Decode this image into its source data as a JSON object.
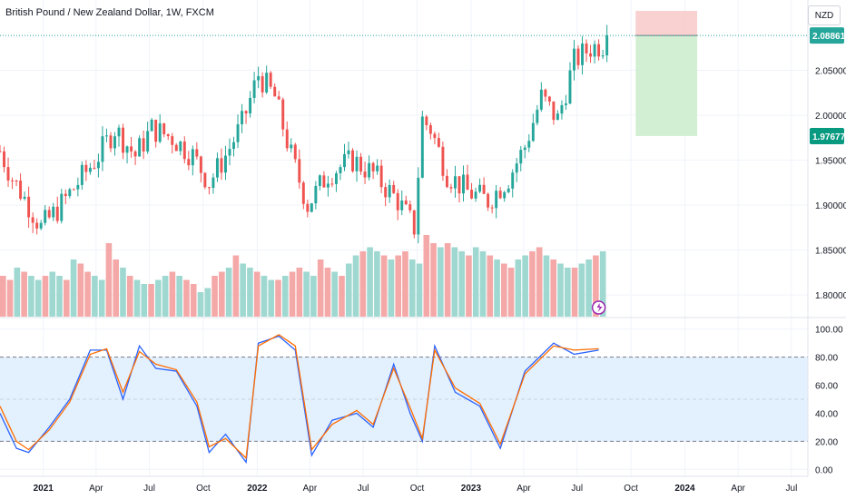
{
  "header": {
    "title": "British Pound / New Zealand Dollar, 1W, FXCM",
    "currency": "NZD"
  },
  "price_axis": {
    "ticks": [
      "2.05000",
      "2.00000",
      "1.95000",
      "1.90000",
      "1.85000",
      "1.80000"
    ],
    "last_price_label": "2.08861",
    "target_label": "1.97677"
  },
  "oscillator_axis": {
    "ticks": [
      "100.00",
      "80.00",
      "60.00",
      "40.00",
      "20.00",
      "0.00"
    ]
  },
  "time_axis": {
    "ticks": [
      "2021",
      "Apr",
      "Jul",
      "Oct",
      "2022",
      "Apr",
      "Jul",
      "Oct",
      "2023",
      "Apr",
      "Jul",
      "Oct",
      "2024",
      "Apr",
      "Jul"
    ]
  },
  "colors": {
    "up": "#26a69a",
    "down": "#ef5350",
    "volume_up": "#9fd8d0",
    "volume_down": "#f4a9a8",
    "stoch_k": "#2962ff",
    "stoch_d": "#ff6d00",
    "stoch_band": "#e3f0fd",
    "last_price_bg": "#26a69a",
    "target_bg": "#089981",
    "loss_zone": "#f7c6c6",
    "profit_zone": "#cdedcf"
  },
  "chart_data": [
    {
      "type": "candlestick",
      "symbol": "GBPNZD",
      "timeframe": "1W",
      "ylim": [
        1.78,
        2.12
      ],
      "x_range": [
        "2020-10-19",
        "2024-07-29"
      ],
      "close_path": [
        [
          "2020-10-19",
          1.96
        ],
        [
          "2020-11-09",
          1.93
        ],
        [
          "2020-12-07",
          1.9
        ],
        [
          "2020-12-28",
          1.875
        ],
        [
          "2021-01-25",
          1.895
        ],
        [
          "2021-03-01",
          1.925
        ],
        [
          "2021-04-05",
          1.955
        ],
        [
          "2021-05-03",
          1.985
        ],
        [
          "2021-06-07",
          1.955
        ],
        [
          "2021-07-05",
          1.985
        ],
        [
          "2021-08-09",
          1.975
        ],
        [
          "2021-09-13",
          1.955
        ],
        [
          "2021-10-11",
          1.925
        ],
        [
          "2021-11-08",
          1.955
        ],
        [
          "2021-12-06",
          1.99
        ],
        [
          "2022-01-03",
          2.045
        ],
        [
          "2022-01-31",
          2.02
        ],
        [
          "2022-02-28",
          1.955
        ],
        [
          "2022-03-28",
          1.9
        ],
        [
          "2022-05-02",
          1.935
        ],
        [
          "2022-06-13",
          1.95
        ],
        [
          "2022-07-18",
          1.935
        ],
        [
          "2022-08-29",
          1.905
        ],
        [
          "2022-09-26",
          1.875
        ],
        [
          "2022-10-10",
          1.995
        ],
        [
          "2022-10-24",
          1.985
        ],
        [
          "2022-11-21",
          1.935
        ],
        [
          "2022-12-26",
          1.915
        ],
        [
          "2023-01-30",
          1.905
        ],
        [
          "2023-03-06",
          1.93
        ],
        [
          "2023-04-03",
          1.965
        ],
        [
          "2023-05-01",
          2.02
        ],
        [
          "2023-05-29",
          1.995
        ],
        [
          "2023-06-26",
          2.06
        ],
        [
          "2023-07-24",
          2.075
        ],
        [
          "2023-08-21",
          2.08
        ]
      ],
      "last_price": 2.08861
    },
    {
      "type": "bar",
      "name": "volume",
      "x_range": [
        "2020-10-19",
        "2023-08-21"
      ],
      "relative_values": [
        0.5,
        0.45,
        0.6,
        0.55,
        0.5,
        0.45,
        0.5,
        0.55,
        0.5,
        0.45,
        0.7,
        0.65,
        0.55,
        0.5,
        0.45,
        0.9,
        0.7,
        0.6,
        0.5,
        0.45,
        0.4,
        0.4,
        0.45,
        0.5,
        0.55,
        0.5,
        0.45,
        0.4,
        0.3,
        0.35,
        0.5,
        0.55,
        0.6,
        0.75,
        0.65,
        0.6,
        0.55,
        0.5,
        0.45,
        0.45,
        0.5,
        0.55,
        0.6,
        0.55,
        0.5,
        0.7,
        0.6,
        0.55,
        0.5,
        0.65,
        0.75,
        0.8,
        0.85,
        0.8,
        0.75,
        0.7,
        0.75,
        0.8,
        0.7,
        0.65,
        1.0,
        0.9,
        0.85,
        0.9,
        0.85,
        0.8,
        0.75,
        0.85,
        0.8,
        0.75,
        0.7,
        0.65,
        0.6,
        0.7,
        0.75,
        0.8,
        0.85,
        0.75,
        0.7,
        0.65,
        0.6,
        0.6,
        0.65,
        0.7,
        0.75,
        0.8
      ]
    },
    {
      "type": "line",
      "name": "stochastic",
      "ylim": [
        -5,
        105
      ],
      "bands": [
        20,
        50,
        80
      ],
      "series": [
        {
          "key": "k",
          "values": [
            [
              "2020-10-19",
              40
            ],
            [
              "2020-11-16",
              15
            ],
            [
              "2020-12-07",
              12
            ],
            [
              "2021-01-11",
              30
            ],
            [
              "2021-02-15",
              50
            ],
            [
              "2021-03-22",
              85
            ],
            [
              "2021-04-19",
              85
            ],
            [
              "2021-05-17",
              50
            ],
            [
              "2021-06-14",
              88
            ],
            [
              "2021-07-12",
              72
            ],
            [
              "2021-08-16",
              70
            ],
            [
              "2021-09-20",
              45
            ],
            [
              "2021-10-11",
              12
            ],
            [
              "2021-11-08",
              25
            ],
            [
              "2021-12-13",
              5
            ],
            [
              "2022-01-03",
              90
            ],
            [
              "2022-02-07",
              95
            ],
            [
              "2022-03-07",
              85
            ],
            [
              "2022-04-04",
              10
            ],
            [
              "2022-05-09",
              35
            ],
            [
              "2022-06-20",
              40
            ],
            [
              "2022-07-18",
              30
            ],
            [
              "2022-08-22",
              75
            ],
            [
              "2022-09-19",
              40
            ],
            [
              "2022-10-10",
              20
            ],
            [
              "2022-10-31",
              88
            ],
            [
              "2022-12-05",
              55
            ],
            [
              "2023-01-16",
              45
            ],
            [
              "2023-02-20",
              15
            ],
            [
              "2023-04-03",
              70
            ],
            [
              "2023-05-22",
              90
            ],
            [
              "2023-06-26",
              82
            ],
            [
              "2023-08-07",
              85
            ]
          ]
        },
        {
          "key": "d",
          "values": [
            [
              "2020-10-19",
              45
            ],
            [
              "2020-11-16",
              20
            ],
            [
              "2020-12-07",
              14
            ],
            [
              "2021-01-11",
              28
            ],
            [
              "2021-02-15",
              48
            ],
            [
              "2021-03-22",
              82
            ],
            [
              "2021-04-19",
              86
            ],
            [
              "2021-05-17",
              55
            ],
            [
              "2021-06-14",
              84
            ],
            [
              "2021-07-12",
              75
            ],
            [
              "2021-08-16",
              71
            ],
            [
              "2021-09-20",
              48
            ],
            [
              "2021-10-11",
              16
            ],
            [
              "2021-11-08",
              22
            ],
            [
              "2021-12-13",
              8
            ],
            [
              "2022-01-03",
              88
            ],
            [
              "2022-02-07",
              96
            ],
            [
              "2022-03-07",
              88
            ],
            [
              "2022-04-04",
              14
            ],
            [
              "2022-05-09",
              32
            ],
            [
              "2022-06-20",
              42
            ],
            [
              "2022-07-18",
              32
            ],
            [
              "2022-08-22",
              72
            ],
            [
              "2022-09-19",
              44
            ],
            [
              "2022-10-10",
              22
            ],
            [
              "2022-10-31",
              85
            ],
            [
              "2022-12-05",
              58
            ],
            [
              "2023-01-16",
              47
            ],
            [
              "2023-02-20",
              18
            ],
            [
              "2023-04-03",
              68
            ],
            [
              "2023-05-22",
              88
            ],
            [
              "2023-06-26",
              85
            ],
            [
              "2023-08-07",
              86
            ]
          ]
        }
      ]
    }
  ],
  "position_tool": {
    "start": "2023-10-09",
    "end": "2024-01-22",
    "stop": 2.116,
    "entry": 2.08861,
    "target": 1.97677
  }
}
